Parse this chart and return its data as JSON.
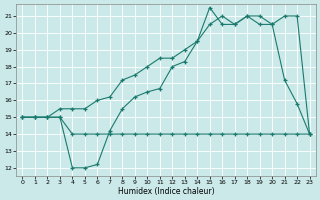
{
  "xlabel": "Humidex (Indice chaleur)",
  "bg_color": "#cce9e9",
  "line_color": "#1a7a6e",
  "grid_color": "#ffffff",
  "xlim": [
    -0.5,
    23.5
  ],
  "ylim": [
    11.5,
    21.7
  ],
  "yticks": [
    12,
    13,
    14,
    15,
    16,
    17,
    18,
    19,
    20,
    21
  ],
  "xticks": [
    0,
    1,
    2,
    3,
    4,
    5,
    6,
    7,
    8,
    9,
    10,
    11,
    12,
    13,
    14,
    15,
    16,
    17,
    18,
    19,
    20,
    21,
    22,
    23
  ],
  "line1_x": [
    0,
    1,
    2,
    3,
    4,
    5,
    6,
    7,
    8,
    9,
    10,
    11,
    12,
    13,
    14,
    15,
    16,
    17,
    18,
    19,
    20,
    21,
    22,
    23
  ],
  "line1_y": [
    15,
    15,
    15,
    15,
    12,
    12,
    12.2,
    14.2,
    15.5,
    16.2,
    16.5,
    16.7,
    18,
    18.3,
    19.5,
    21.5,
    20.5,
    20.5,
    21,
    20.5,
    20.5,
    17.2,
    15.8,
    14
  ],
  "line2_x": [
    0,
    1,
    2,
    3,
    4,
    5,
    6,
    7,
    8,
    9,
    10,
    11,
    12,
    13,
    14,
    15,
    16,
    17,
    18,
    19,
    20,
    21,
    22,
    23
  ],
  "line2_y": [
    15,
    15,
    15,
    15,
    14,
    14,
    14,
    14,
    14,
    14,
    14,
    14,
    14,
    14,
    14,
    14,
    14,
    14,
    14,
    14,
    14,
    14,
    14,
    14
  ],
  "line3_x": [
    0,
    1,
    2,
    3,
    4,
    5,
    6,
    7,
    8,
    9,
    10,
    11,
    12,
    13,
    14,
    15,
    16,
    17,
    18,
    19,
    20,
    21,
    22,
    23
  ],
  "line3_y": [
    15,
    15,
    15,
    15.5,
    15.5,
    15.5,
    16,
    16.2,
    17.2,
    17.5,
    18,
    18.5,
    18.5,
    19,
    19.5,
    20.5,
    21,
    20.5,
    21,
    21,
    20.5,
    21,
    21,
    14
  ]
}
